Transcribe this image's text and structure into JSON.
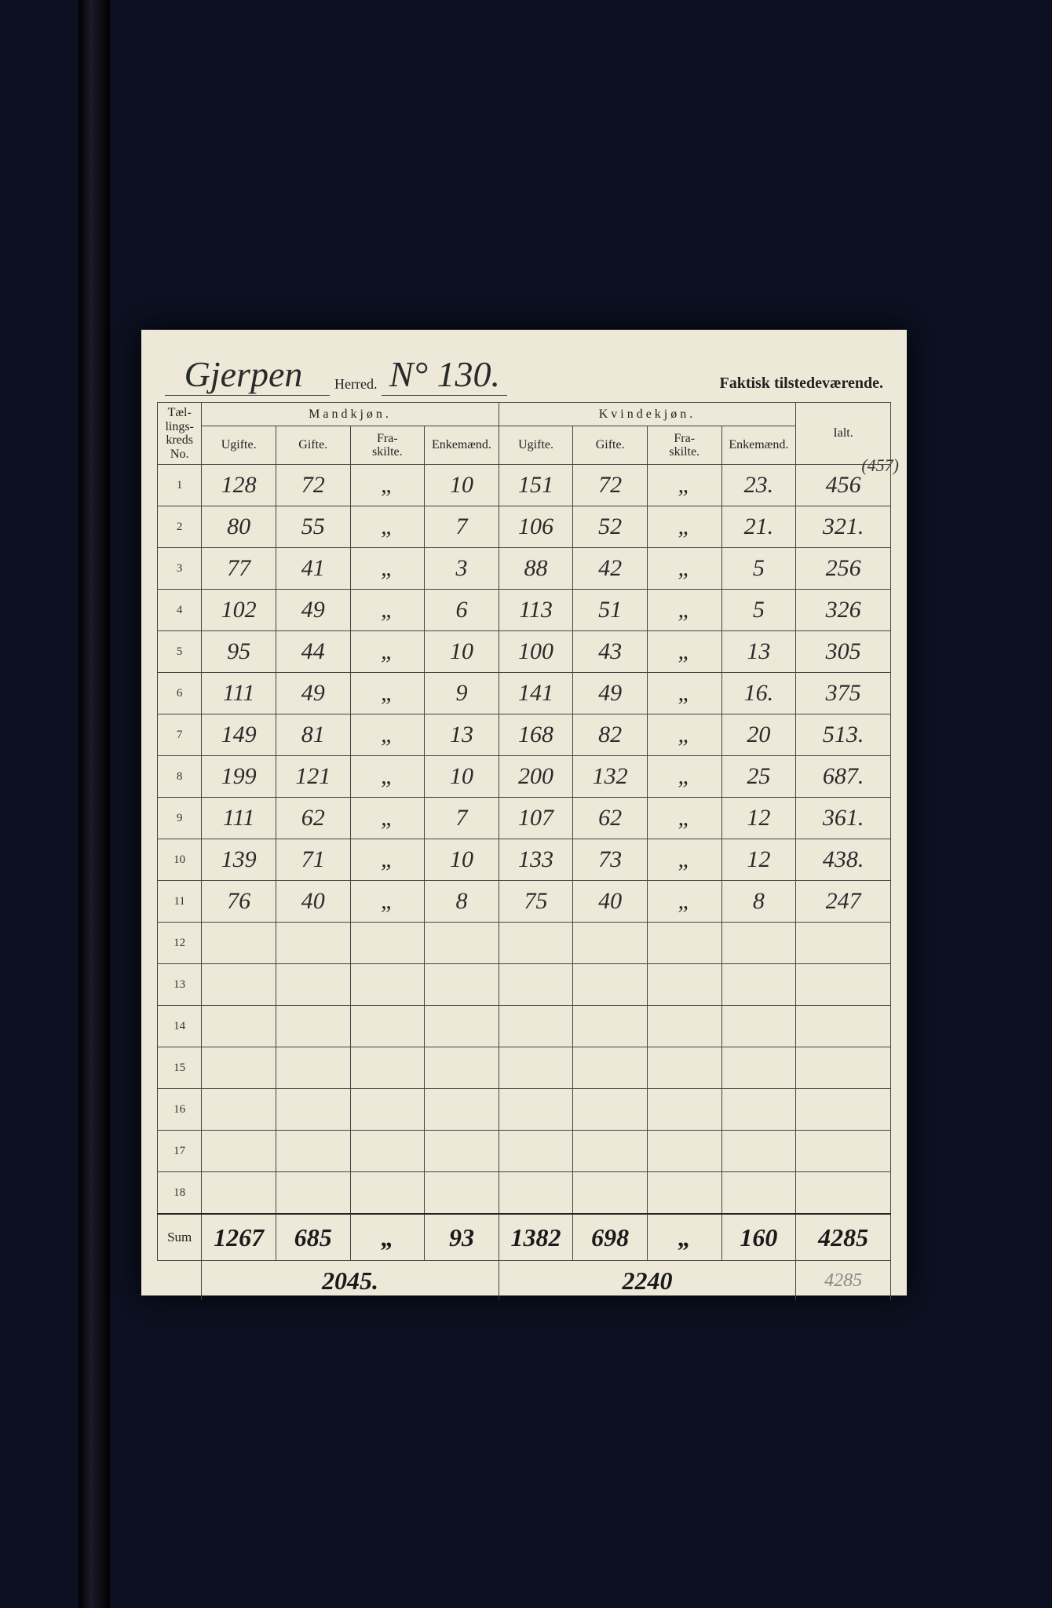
{
  "page": {
    "background_color": "#0c1020",
    "sheet_color": "#ede8d8"
  },
  "header": {
    "herred_name": "Gjerpen",
    "herred_label": "Herred.",
    "herred_no": "N° 130.",
    "faktisk": "Faktisk tilstedeværende."
  },
  "columns": {
    "no_label": "Tæl-\nlings-\nkreds\nNo.",
    "mand_group": "Mandkjøn.",
    "kvind_group": "Kvindekjøn.",
    "ugifte": "Ugifte.",
    "gifte": "Gifte.",
    "fraskilte": "Fra-\nskilte.",
    "enkemand": "Enkemænd.",
    "ialt": "Ialt."
  },
  "rows": [
    {
      "no": "1",
      "m_ug": "128",
      "m_g": "72",
      "m_f": "„",
      "m_e": "10",
      "k_ug": "151",
      "k_g": "72",
      "k_f": "„",
      "k_e": "23.",
      "ialt": "456",
      "note": "(457)"
    },
    {
      "no": "2",
      "m_ug": "80",
      "m_g": "55",
      "m_f": "„",
      "m_e": "7",
      "k_ug": "106",
      "k_g": "52",
      "k_f": "„",
      "k_e": "21.",
      "ialt": "321."
    },
    {
      "no": "3",
      "m_ug": "77",
      "m_g": "41",
      "m_f": "„",
      "m_e": "3",
      "k_ug": "88",
      "k_g": "42",
      "k_f": "„",
      "k_e": "5",
      "ialt": "256"
    },
    {
      "no": "4",
      "m_ug": "102",
      "m_g": "49",
      "m_f": "„",
      "m_e": "6",
      "k_ug": "113",
      "k_g": "51",
      "k_f": "„",
      "k_e": "5",
      "ialt": "326"
    },
    {
      "no": "5",
      "m_ug": "95",
      "m_g": "44",
      "m_f": "„",
      "m_e": "10",
      "k_ug": "100",
      "k_g": "43",
      "k_f": "„",
      "k_e": "13",
      "ialt": "305"
    },
    {
      "no": "6",
      "m_ug": "111",
      "m_g": "49",
      "m_f": "„",
      "m_e": "9",
      "k_ug": "141",
      "k_g": "49",
      "k_f": "„",
      "k_e": "16.",
      "ialt": "375"
    },
    {
      "no": "7",
      "m_ug": "149",
      "m_g": "81",
      "m_f": "„",
      "m_e": "13",
      "k_ug": "168",
      "k_g": "82",
      "k_f": "„",
      "k_e": "20",
      "ialt": "513."
    },
    {
      "no": "8",
      "m_ug": "199",
      "m_g": "121",
      "m_f": "„",
      "m_e": "10",
      "k_ug": "200",
      "k_g": "132",
      "k_f": "„",
      "k_e": "25",
      "ialt": "687."
    },
    {
      "no": "9",
      "m_ug": "111",
      "m_g": "62",
      "m_f": "„",
      "m_e": "7",
      "k_ug": "107",
      "k_g": "62",
      "k_f": "„",
      "k_e": "12",
      "ialt": "361."
    },
    {
      "no": "10",
      "m_ug": "139",
      "m_g": "71",
      "m_f": "„",
      "m_e": "10",
      "k_ug": "133",
      "k_g": "73",
      "k_f": "„",
      "k_e": "12",
      "ialt": "438."
    },
    {
      "no": "11",
      "m_ug": "76",
      "m_g": "40",
      "m_f": "„",
      "m_e": "8",
      "k_ug": "75",
      "k_g": "40",
      "k_f": "„",
      "k_e": "8",
      "ialt": "247"
    },
    {
      "no": "12",
      "m_ug": "",
      "m_g": "",
      "m_f": "",
      "m_e": "",
      "k_ug": "",
      "k_g": "",
      "k_f": "",
      "k_e": "",
      "ialt": ""
    },
    {
      "no": "13",
      "m_ug": "",
      "m_g": "",
      "m_f": "",
      "m_e": "",
      "k_ug": "",
      "k_g": "",
      "k_f": "",
      "k_e": "",
      "ialt": ""
    },
    {
      "no": "14",
      "m_ug": "",
      "m_g": "",
      "m_f": "",
      "m_e": "",
      "k_ug": "",
      "k_g": "",
      "k_f": "",
      "k_e": "",
      "ialt": ""
    },
    {
      "no": "15",
      "m_ug": "",
      "m_g": "",
      "m_f": "",
      "m_e": "",
      "k_ug": "",
      "k_g": "",
      "k_f": "",
      "k_e": "",
      "ialt": ""
    },
    {
      "no": "16",
      "m_ug": "",
      "m_g": "",
      "m_f": "",
      "m_e": "",
      "k_ug": "",
      "k_g": "",
      "k_f": "",
      "k_e": "",
      "ialt": ""
    },
    {
      "no": "17",
      "m_ug": "",
      "m_g": "",
      "m_f": "",
      "m_e": "",
      "k_ug": "",
      "k_g": "",
      "k_f": "",
      "k_e": "",
      "ialt": ""
    },
    {
      "no": "18",
      "m_ug": "",
      "m_g": "",
      "m_f": "",
      "m_e": "",
      "k_ug": "",
      "k_g": "",
      "k_f": "",
      "k_e": "",
      "ialt": ""
    }
  ],
  "sum": {
    "label": "Sum",
    "m_ug": "1267",
    "m_g": "685",
    "m_f": "„",
    "m_e": "93",
    "k_ug": "1382",
    "k_g": "698",
    "k_f": "„",
    "k_e": "160",
    "ialt": "4285"
  },
  "subtotals": {
    "male": "2045.",
    "female": "2240",
    "faint": "4285"
  }
}
